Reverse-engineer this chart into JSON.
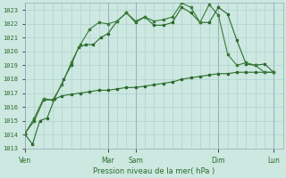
{
  "xlabel": "Pression niveau de la mer( hPa )",
  "ylim": [
    1013,
    1023.5
  ],
  "yticks": [
    1013,
    1014,
    1015,
    1016,
    1017,
    1018,
    1019,
    1020,
    1021,
    1022,
    1023
  ],
  "bg_color": "#cce8e0",
  "grid_color": "#aacccc",
  "line_color_dark": "#2d6b2d",
  "line_color_med": "#3a7a3a",
  "xtick_labels": [
    "Ven",
    "Mar",
    "Sam",
    "Dim",
    "Lun"
  ],
  "xtick_positions": [
    0,
    4.5,
    6.0,
    10.5,
    13.5
  ],
  "vline_positions": [
    0,
    4.5,
    6.0,
    10.5,
    13.5
  ],
  "xlim": [
    0,
    14
  ],
  "series1_x": [
    0.0,
    0.4,
    0.8,
    1.2,
    1.6,
    2.1,
    2.5,
    2.9,
    3.3,
    3.7,
    4.1,
    4.5,
    5.0,
    5.5,
    6.0,
    6.5,
    7.0,
    7.5,
    8.0,
    8.5,
    9.0,
    9.5,
    10.0,
    10.5,
    11.0,
    11.5,
    12.0,
    12.5,
    13.0,
    13.5
  ],
  "series1_y": [
    1014.0,
    1013.3,
    1015.0,
    1015.2,
    1016.6,
    1018.0,
    1019.0,
    1020.3,
    1020.5,
    1020.5,
    1021.0,
    1021.3,
    1022.2,
    1022.8,
    1022.1,
    1022.5,
    1021.9,
    1021.9,
    1022.1,
    1023.2,
    1022.8,
    1022.1,
    1022.1,
    1023.2,
    1022.7,
    1020.8,
    1019.1,
    1019.0,
    1019.1,
    1018.5
  ],
  "series2_x": [
    0.0,
    0.5,
    1.0,
    1.5,
    2.0,
    2.5,
    3.0,
    3.5,
    4.0,
    4.5,
    5.0,
    5.5,
    6.0,
    6.5,
    7.0,
    7.5,
    8.0,
    8.5,
    9.0,
    9.5,
    10.0,
    10.5,
    11.0,
    11.5,
    12.0,
    12.5,
    13.0,
    13.5
  ],
  "series2_y": [
    1014.1,
    1015.2,
    1016.6,
    1016.5,
    1017.6,
    1019.2,
    1020.5,
    1021.6,
    1022.1,
    1022.0,
    1022.2,
    1022.8,
    1022.2,
    1022.5,
    1022.2,
    1022.3,
    1022.5,
    1023.5,
    1023.2,
    1022.1,
    1023.4,
    1022.6,
    1019.8,
    1019.0,
    1019.2,
    1019.0,
    1018.5,
    1018.5
  ],
  "series3_x": [
    0.0,
    0.5,
    1.0,
    1.5,
    2.0,
    2.5,
    3.0,
    3.5,
    4.0,
    4.5,
    5.0,
    5.5,
    6.0,
    6.5,
    7.0,
    7.5,
    8.0,
    8.5,
    9.0,
    9.5,
    10.0,
    10.5,
    11.0,
    11.5,
    12.0,
    12.5,
    13.0,
    13.5
  ],
  "series3_y": [
    1014.1,
    1015.0,
    1016.5,
    1016.5,
    1016.8,
    1016.9,
    1017.0,
    1017.1,
    1017.2,
    1017.2,
    1017.3,
    1017.4,
    1017.4,
    1017.5,
    1017.6,
    1017.7,
    1017.8,
    1018.0,
    1018.1,
    1018.2,
    1018.3,
    1018.4,
    1018.4,
    1018.5,
    1018.5,
    1018.5,
    1018.5,
    1018.5
  ]
}
